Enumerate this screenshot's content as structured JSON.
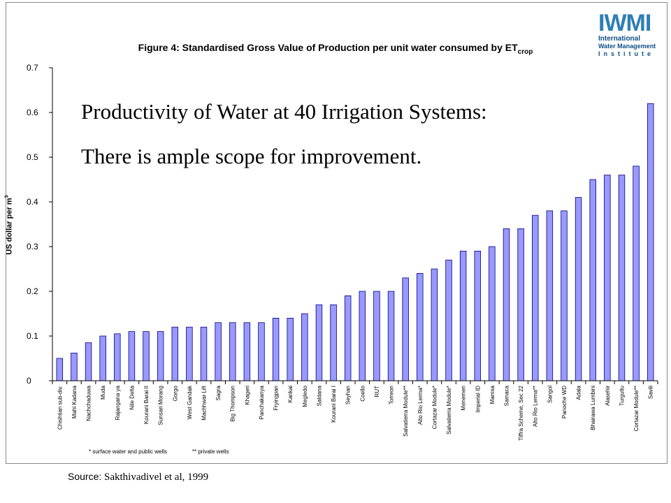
{
  "logo": {
    "mark": "IWMI",
    "line1": "International",
    "line2": "Water Management",
    "line3": "Institute"
  },
  "overlay": {
    "line1": "Productivity of Water at 40 Irrigation Systems:",
    "line2": "There is ample scope for improvement."
  },
  "notes": {
    "surface": "* surface water and public wells",
    "private": "** private wells"
  },
  "source": {
    "label": "Source:",
    "text": "Sakthivadivel et al, 1999"
  },
  "chart_data": {
    "type": "bar",
    "title": "Figure 4: Standardised Gross Value of Production per unit water consumed by ET",
    "title_subscript": "crop",
    "ylabel": "US dollar per m",
    "ylabel_superscript": "3",
    "xlabel": "",
    "ylim": [
      0,
      0.7
    ],
    "yticks": [
      "0",
      "0.1",
      "0.2",
      "0.3",
      "0.4",
      "0.5",
      "0.6",
      "0.7"
    ],
    "grid": false,
    "colors": {
      "bar_fill": "#9999ff",
      "bar_edge": "#000080"
    },
    "categories": [
      "Chishtian sub-div.",
      "Mahi Kadana",
      "Nachchaduwa",
      "Muda",
      "Rajangana ya",
      "Nile Delta",
      "Kourani Barai II",
      "Sunsari Morang",
      "Gorgo",
      "West Gandak",
      "Machhwar Lift",
      "Sagra",
      "Big Thompson",
      "Khageri",
      "Panchakanya",
      "Fryingpan",
      "Kankai",
      "Megledo",
      "Saldana",
      "Kourani Barai I",
      "Seyhan",
      "Coello",
      "RUT",
      "Torreon",
      "Salvatierra Module**",
      "Alto Rio Lerma*",
      "Cortazar Module*",
      "Salvatierra Module*",
      "Menemen",
      "Imperial ID",
      "Mamsa",
      "Samaca",
      "Tiffra Scheme, Sec 22",
      "Alto Rio Lerma**",
      "Sangol",
      "Panoche WD",
      "Adala",
      "Bhairawa Lumbini",
      "Alasehir",
      "Turgutlu",
      "Cortazar Module**",
      "Savili"
    ],
    "values": [
      0.05,
      0.062,
      0.085,
      0.1,
      0.105,
      0.11,
      0.11,
      0.11,
      0.12,
      0.12,
      0.12,
      0.13,
      0.13,
      0.13,
      0.13,
      0.14,
      0.14,
      0.15,
      0.17,
      0.17,
      0.19,
      0.2,
      0.2,
      0.2,
      0.23,
      0.24,
      0.25,
      0.27,
      0.29,
      0.29,
      0.3,
      0.34,
      0.34,
      0.37,
      0.38,
      0.38,
      0.41,
      0.45,
      0.46,
      0.46,
      0.48,
      0.62
    ]
  }
}
